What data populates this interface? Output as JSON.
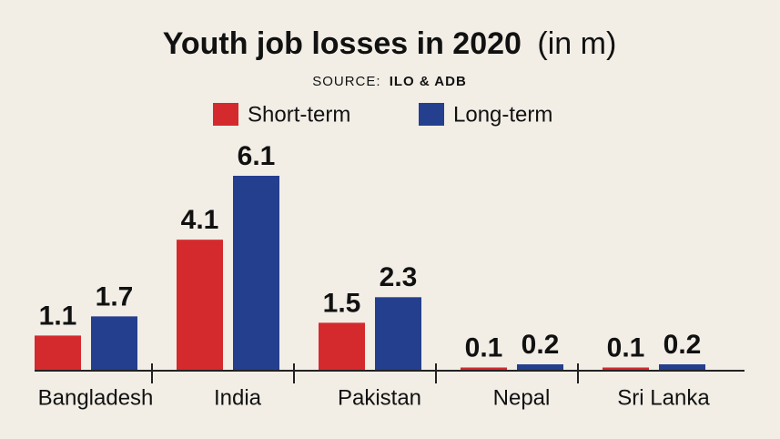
{
  "chart_data": {
    "type": "bar",
    "title": "Youth job losses in 2020",
    "title_unit": "(in m)",
    "source_label": "SOURCE:",
    "source": "ILO & ADB",
    "categories": [
      "Bangladesh",
      "India",
      "Pakistan",
      "Nepal",
      "Sri Lanka"
    ],
    "series": [
      {
        "name": "Short-term",
        "color": "#d42a2e",
        "values": [
          1.1,
          4.1,
          1.5,
          0.1,
          0.1
        ]
      },
      {
        "name": "Long-term",
        "color": "#253f8f",
        "values": [
          1.7,
          6.1,
          2.3,
          0.2,
          0.2
        ]
      }
    ]
  }
}
